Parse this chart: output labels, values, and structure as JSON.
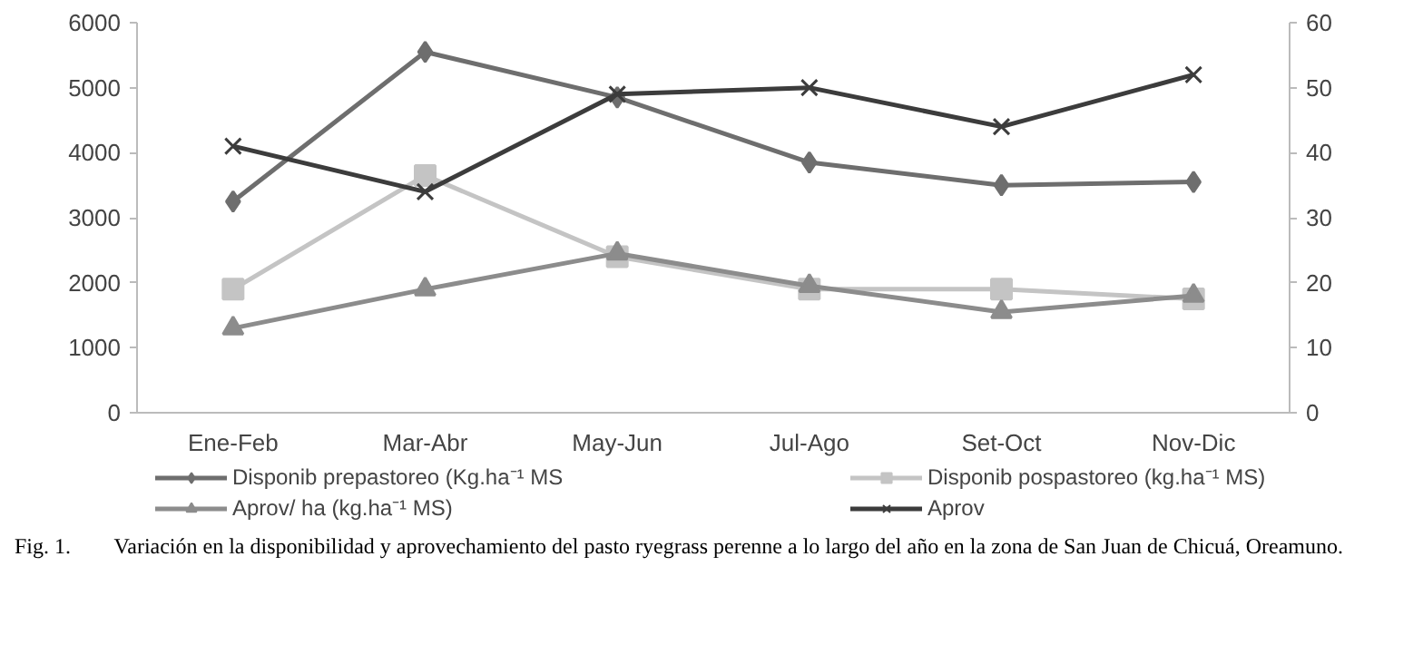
{
  "chart_data": {
    "type": "line",
    "categories": [
      "Ene-Feb",
      "Mar-Abr",
      "May-Jun",
      "Jul-Ago",
      "Set-Oct",
      "Nov-Dic"
    ],
    "series": [
      {
        "name": "Disponib prepastoreo (Kg.ha⁻¹ MS",
        "color": "#6e6e6e",
        "marker": "diamond",
        "values": [
          3250,
          5550,
          4850,
          3850,
          3500,
          3550
        ]
      },
      {
        "name": "Disponib pospastoreo (kg.ha⁻¹ MS)",
        "color": "#c4c4c4",
        "marker": "square",
        "values": [
          1900,
          3650,
          2400,
          1900,
          1900,
          1750
        ]
      },
      {
        "name": "Aprov/ ha (kg.ha⁻¹ MS)",
        "color": "#8c8c8c",
        "marker": "triangle",
        "values": [
          1300,
          1900,
          2450,
          1950,
          1550,
          1800
        ]
      },
      {
        "name": "Aprov",
        "color": "#3c3c3c",
        "marker": "cross",
        "axis": "y2",
        "values": [
          41,
          34,
          49,
          50,
          44,
          52
        ]
      }
    ],
    "ylim": [
      0,
      6000
    ],
    "yticks": [
      0,
      1000,
      2000,
      3000,
      4000,
      5000,
      6000
    ],
    "y2lim": [
      0,
      60
    ],
    "y2ticks": [
      0,
      10,
      20,
      30,
      40,
      50,
      60
    ],
    "grid": false,
    "legend": "bottom",
    "line_style": "solid",
    "annotations": [
      "Fig. 1.        Variación en la disponibilidad y aprovechamiento del pasto ryegrass perenne a lo largo del año en la zona de San Juan de Chicuá, Oreamuno."
    ]
  }
}
